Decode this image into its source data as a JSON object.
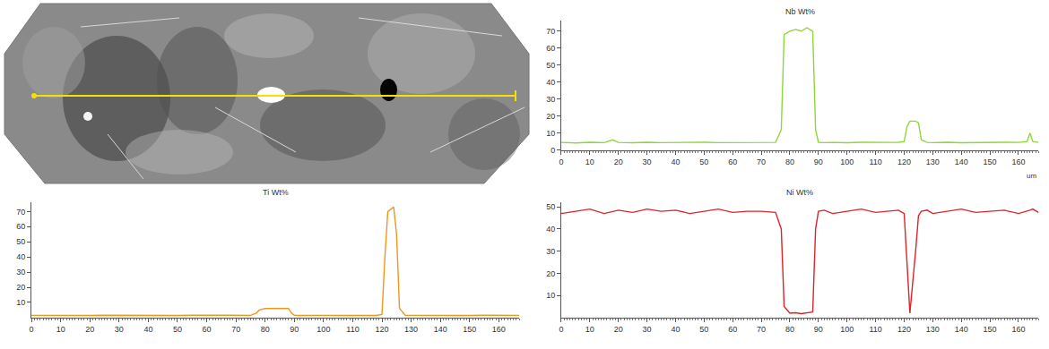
{
  "chart_data": [
    {
      "type": "line",
      "title": "Nb Wt%",
      "x_label": "um",
      "color": "#8fd63a",
      "x": [
        0,
        5,
        10,
        15,
        18,
        20,
        25,
        30,
        35,
        40,
        45,
        50,
        55,
        60,
        65,
        70,
        75,
        77,
        78,
        80,
        82,
        84,
        86,
        88,
        89,
        90,
        92,
        95,
        100,
        105,
        110,
        115,
        118,
        120,
        121,
        122,
        124,
        125,
        126,
        128,
        130,
        135,
        140,
        145,
        150,
        155,
        160,
        163,
        164,
        165,
        167
      ],
      "values": [
        4.5,
        4.2,
        4.6,
        4.4,
        6.0,
        4.5,
        4.3,
        4.6,
        4.4,
        4.5,
        4.3,
        4.6,
        4.4,
        4.5,
        4.3,
        4.6,
        4.5,
        12,
        68,
        70,
        71,
        70,
        72,
        70,
        12,
        4.6,
        4.4,
        4.5,
        4.3,
        4.6,
        4.4,
        4.5,
        4.6,
        5,
        14,
        17,
        17,
        16,
        6,
        4.5,
        4.4,
        4.6,
        4.3,
        4.5,
        4.4,
        4.6,
        4.5,
        5,
        10,
        5,
        4.5
      ],
      "xlim": [
        0,
        167
      ],
      "xticks": [
        0,
        10,
        20,
        30,
        40,
        50,
        60,
        70,
        80,
        90,
        100,
        110,
        120,
        130,
        140,
        150,
        160
      ],
      "ylim": [
        0,
        76
      ],
      "yticks": [
        0,
        10,
        20,
        30,
        40,
        50,
        60,
        70
      ]
    },
    {
      "type": "line",
      "title": "Ti Wt%",
      "color": "#f0961e",
      "x": [
        0,
        5,
        10,
        15,
        18,
        20,
        25,
        30,
        35,
        40,
        45,
        50,
        55,
        60,
        65,
        70,
        75,
        77,
        78,
        80,
        82,
        84,
        86,
        88,
        89,
        90,
        92,
        95,
        100,
        105,
        110,
        115,
        118,
        120,
        121,
        122,
        124,
        125,
        126,
        128,
        130,
        135,
        140,
        145,
        150,
        155,
        160,
        163,
        164,
        165,
        167
      ],
      "values": [
        1.5,
        1.4,
        1.6,
        1.5,
        1.5,
        1.4,
        1.6,
        1.5,
        1.4,
        1.6,
        1.5,
        1.4,
        1.6,
        1.5,
        1.4,
        1.6,
        1.5,
        3,
        5,
        6,
        6,
        5.8,
        6.2,
        6,
        3,
        1.5,
        1.4,
        1.6,
        1.5,
        1.4,
        1.6,
        1.5,
        1.4,
        2,
        40,
        70,
        73,
        55,
        6,
        1.5,
        1.5,
        1.4,
        1.6,
        1.5,
        1.4,
        1.6,
        1.5,
        1.4,
        1.5,
        1.6,
        1.5
      ],
      "xlim": [
        0,
        167
      ],
      "xticks": [
        0,
        10,
        20,
        30,
        40,
        50,
        60,
        70,
        80,
        90,
        100,
        110,
        120,
        130,
        140,
        150,
        160
      ],
      "ylim": [
        0,
        76
      ],
      "yticks": [
        10,
        20,
        30,
        40,
        50,
        60,
        70
      ]
    },
    {
      "type": "line",
      "title": "Ni Wt%",
      "color": "#d9262b",
      "x": [
        0,
        5,
        10,
        15,
        18,
        20,
        25,
        30,
        35,
        40,
        45,
        50,
        55,
        60,
        65,
        70,
        75,
        77,
        78,
        80,
        82,
        84,
        86,
        88,
        89,
        90,
        92,
        95,
        100,
        105,
        110,
        115,
        118,
        120,
        121,
        122,
        124,
        125,
        126,
        128,
        130,
        135,
        140,
        145,
        150,
        155,
        160,
        163,
        164,
        165,
        167
      ],
      "values": [
        47,
        48,
        49,
        47,
        48,
        48.5,
        47.5,
        49,
        48,
        48.5,
        47,
        48,
        49,
        47.5,
        48,
        48,
        47.5,
        40,
        5,
        2,
        2.2,
        1.8,
        2,
        2.5,
        40,
        48,
        48.5,
        47,
        48,
        49,
        47.5,
        48,
        48.5,
        47,
        25,
        2,
        30,
        46,
        48,
        48.5,
        47,
        48,
        49,
        47.5,
        48,
        48.5,
        47,
        48,
        48.5,
        49,
        47.5
      ],
      "xlim": [
        0,
        167
      ],
      "xticks": [
        0,
        10,
        20,
        30,
        40,
        50,
        60,
        70,
        80,
        90,
        100,
        110,
        120,
        130,
        140,
        150,
        160
      ],
      "ylim": [
        0,
        52
      ],
      "yticks": [
        10,
        20,
        30,
        40,
        50
      ]
    }
  ]
}
